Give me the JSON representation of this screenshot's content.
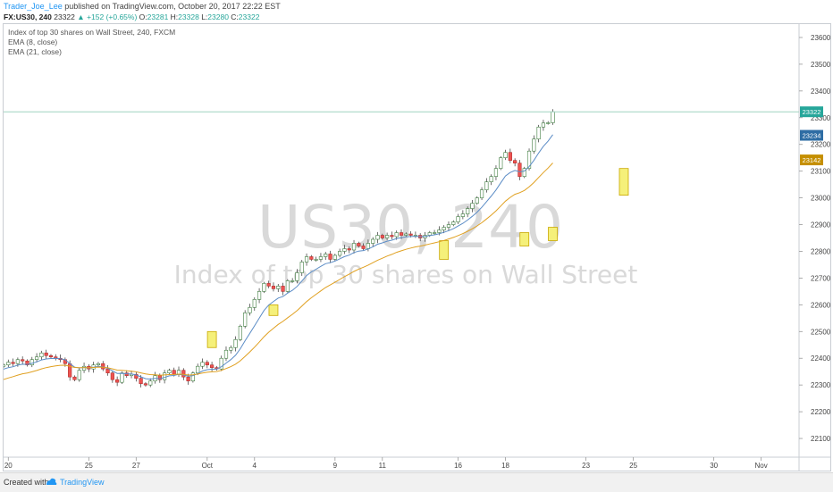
{
  "header": {
    "author": "Trader_Joe_Lee",
    "published_text": "published on TradingView.com, October 20, 2017 22:22 EST",
    "symbol": "FX:US30, 240",
    "last": "23322",
    "arrow": "▲",
    "change": "+152 (+0.65%)",
    "open_label": "O:",
    "open": "23281",
    "high_label": "H:",
    "high": "23328",
    "low_label": "L:",
    "low": "23280",
    "close_label": "C:",
    "close": "23322"
  },
  "legend": {
    "title": "Index of top 30 shares on Wall Street, 240, FXCM",
    "ema8": "EMA (8, close)",
    "ema21": "EMA (21, close)"
  },
  "watermark": {
    "symbol": "US30, 240",
    "description": "Index of top 30 shares on Wall Street"
  },
  "footer": {
    "created_with": "Created with",
    "brand": "TradingView"
  },
  "colors": {
    "up": "#26a69a",
    "down": "#ef5350",
    "candle_up_fill": "#ffffff",
    "candle_body_stroke": "#3f7d3f",
    "ema8": "#5b8cc6",
    "ema21": "#e0a020",
    "highlight_fill": "#f5f07a",
    "highlight_stroke": "#c9a800",
    "last_price_badge": "#26a69a",
    "ema8_badge": "#2e6da4",
    "ema21_badge": "#c58f00"
  },
  "chart_data": {
    "type": "candlestick",
    "title": "Index of top 30 shares on Wall Street, 240, FXCM",
    "ylim": [
      22030,
      23650
    ],
    "y_ticks": [
      22100,
      22200,
      22300,
      22400,
      22500,
      22600,
      22700,
      22800,
      22900,
      23000,
      23100,
      23200,
      23300,
      23400,
      23500,
      23600
    ],
    "x_ticks": [
      {
        "label": "20",
        "bar": 1
      },
      {
        "label": "25",
        "bar": 18
      },
      {
        "label": "27",
        "bar": 28
      },
      {
        "label": "Oct",
        "bar": 43
      },
      {
        "label": "4",
        "bar": 53
      },
      {
        "label": "9",
        "bar": 70
      },
      {
        "label": "11",
        "bar": 80
      },
      {
        "label": "16",
        "bar": 96
      },
      {
        "label": "18",
        "bar": 106
      },
      {
        "label": "23",
        "bar": 123
      },
      {
        "label": "25",
        "bar": 133
      },
      {
        "label": "30",
        "bar": 150
      },
      {
        "label": "Nov",
        "bar": 160
      }
    ],
    "x_range": [
      0,
      168
    ],
    "grid": false,
    "price_labels": {
      "last": "23322",
      "ema8": "23234",
      "ema21": "23142"
    },
    "last_price": 23322,
    "ema8_last": 23234,
    "ema21_last": 23142,
    "closes": [
      22375,
      22385,
      22380,
      22395,
      22390,
      22375,
      22395,
      22405,
      22420,
      22410,
      22405,
      22400,
      22395,
      22380,
      22330,
      22320,
      22355,
      22370,
      22360,
      22375,
      22380,
      22360,
      22345,
      22320,
      22310,
      22345,
      22335,
      22340,
      22325,
      22305,
      22300,
      22315,
      22335,
      22320,
      22345,
      22355,
      22340,
      22355,
      22330,
      22315,
      22345,
      22370,
      22385,
      22375,
      22365,
      22360,
      22400,
      22430,
      22440,
      22470,
      22520,
      22570,
      22590,
      22620,
      22650,
      22680,
      22670,
      22660,
      22670,
      22650,
      22690,
      22690,
      22720,
      22760,
      22780,
      22770,
      22770,
      22780,
      22790,
      22770,
      22785,
      22800,
      22810,
      22805,
      22830,
      22820,
      22810,
      22830,
      22845,
      22860,
      22850,
      22860,
      22855,
      22870,
      22860,
      22865,
      22860,
      22860,
      22850,
      22860,
      22870,
      22870,
      22880,
      22890,
      22900,
      22910,
      22930,
      22940,
      22960,
      22980,
      23000,
      23030,
      23060,
      23080,
      23110,
      23150,
      23170,
      23140,
      23130,
      23080,
      23110,
      23175,
      23220,
      23265,
      23280,
      23281,
      23322
    ],
    "highlights": [
      {
        "bar": 44,
        "low": 22440,
        "high": 22500
      },
      {
        "bar": 57,
        "low": 22560,
        "high": 22600
      },
      {
        "bar": 93,
        "low": 22770,
        "high": 22840
      },
      {
        "bar": 110,
        "low": 22820,
        "high": 22870
      },
      {
        "bar": 116,
        "low": 22840,
        "high": 22890
      },
      {
        "bar": 131,
        "low": 23010,
        "high": 23110
      }
    ]
  }
}
